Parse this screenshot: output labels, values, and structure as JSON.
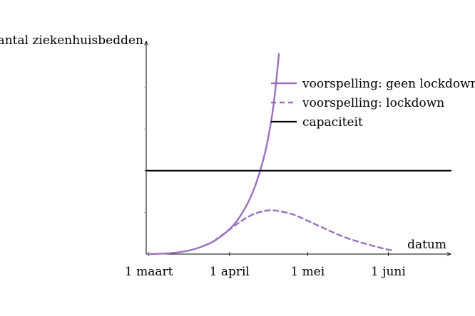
{
  "chart_data": {
    "type": "line",
    "xlabel": "datum",
    "ylabel": "aantal ziekenhuisbedden",
    "x_unit": "date",
    "xlim": [
      "2020-02-29",
      "2020-06-25"
    ],
    "ylim": [
      0,
      500
    ],
    "x_ticks": [
      {
        "date": "2020-03-01",
        "label": "1 maart"
      },
      {
        "date": "2020-04-01",
        "label": "1 april"
      },
      {
        "date": "2020-05-01",
        "label": "1 mei"
      },
      {
        "date": "2020-06-01",
        "label": "1 juni"
      }
    ],
    "y_ticks": [
      100,
      200,
      300,
      400
    ],
    "y_tick_labels_shown": false,
    "grid": false,
    "legend": "top-right",
    "series": [
      {
        "name": "voorspelling: geen lockdown",
        "style": "solid",
        "color": "#9B6FBF",
        "x": [
          "2020-03-01",
          "2020-03-09",
          "2020-03-16",
          "2020-03-21",
          "2020-03-26",
          "2020-03-31",
          "2020-04-04",
          "2020-04-08",
          "2020-04-11",
          "2020-04-14",
          "2020-04-16",
          "2020-04-18",
          "2020-04-20"
        ],
        "y": [
          0,
          2,
          8,
          17,
          31,
          54,
          81,
          122,
          166,
          227,
          283,
          361,
          480
        ]
      },
      {
        "name": "voorspelling: lockdown",
        "style": "dashed",
        "color": "#9B6FBF",
        "x": [
          "2020-03-26",
          "2020-03-31",
          "2020-04-05",
          "2020-04-10",
          "2020-04-15",
          "2020-04-19",
          "2020-04-25",
          "2020-05-01",
          "2020-05-08",
          "2020-05-15",
          "2020-05-22",
          "2020-05-29",
          "2020-06-03"
        ],
        "y": [
          31,
          54,
          77,
          95,
          104,
          104,
          96,
          80,
          60,
          41,
          27,
          15,
          8
        ]
      },
      {
        "name": "capaciteit",
        "style": "solid",
        "color": "#000000",
        "x": [
          "2020-02-29",
          "2020-06-25"
        ],
        "y": [
          200,
          200
        ]
      }
    ]
  }
}
